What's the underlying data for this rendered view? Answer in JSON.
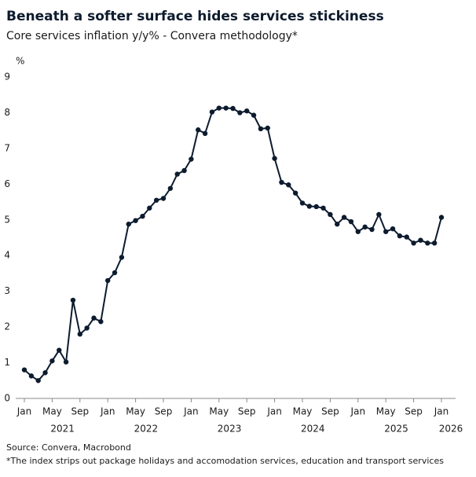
{
  "chart_data": {
    "type": "line",
    "title": "Beneath a softer surface hides services stickiness",
    "subtitle": "Core services inflation y/y% - Convera methodology*",
    "y_label": "%",
    "source": "Source: Convera, Macrobond",
    "footnote": "*The index strips out package holidays and accomodation services, education and transport services",
    "categories": [
      "Jan",
      null,
      null,
      null,
      "May",
      null,
      null,
      null,
      "Sep",
      null,
      null,
      null,
      "Jan",
      null,
      null,
      null,
      "May",
      null,
      null,
      null,
      "Sep",
      null,
      null,
      null,
      "Jan",
      null,
      null,
      null,
      "May",
      null,
      null,
      null,
      "Sep",
      null,
      null,
      null,
      "Jan",
      null,
      null,
      null,
      "May",
      null,
      null,
      null,
      "Sep",
      null,
      null,
      null,
      "Jan",
      null,
      null,
      null,
      "May",
      null,
      null,
      null,
      "Sep",
      null,
      null,
      null,
      "Jan"
    ],
    "years": [
      "2021",
      "2022",
      "2023",
      "2024",
      "2025",
      "2026"
    ],
    "series": [
      {
        "name": "Core services inflation",
        "color": "#0d1b2e",
        "values": [
          0.8,
          0.63,
          0.5,
          0.72,
          1.05,
          1.35,
          1.02,
          2.75,
          1.8,
          1.97,
          2.25,
          2.15,
          3.3,
          3.52,
          3.95,
          4.88,
          4.98,
          5.1,
          5.33,
          5.55,
          5.6,
          5.88,
          6.28,
          6.38,
          6.7,
          7.52,
          7.42,
          8.02,
          8.13,
          8.13,
          8.12,
          8.0,
          8.05,
          7.93,
          7.55,
          7.57,
          6.72,
          6.05,
          5.98,
          5.75,
          5.47,
          5.38,
          5.37,
          5.33,
          5.15,
          4.88,
          5.07,
          4.95,
          4.67,
          4.8,
          4.73,
          5.15,
          4.67,
          4.75,
          4.55,
          4.52,
          4.35,
          4.43,
          4.35,
          4.35,
          5.07
        ]
      }
    ],
    "ylim": [
      0,
      9
    ],
    "yticks": [
      0,
      1,
      2,
      3,
      4,
      5,
      6,
      7,
      8,
      9
    ],
    "grid": false
  }
}
